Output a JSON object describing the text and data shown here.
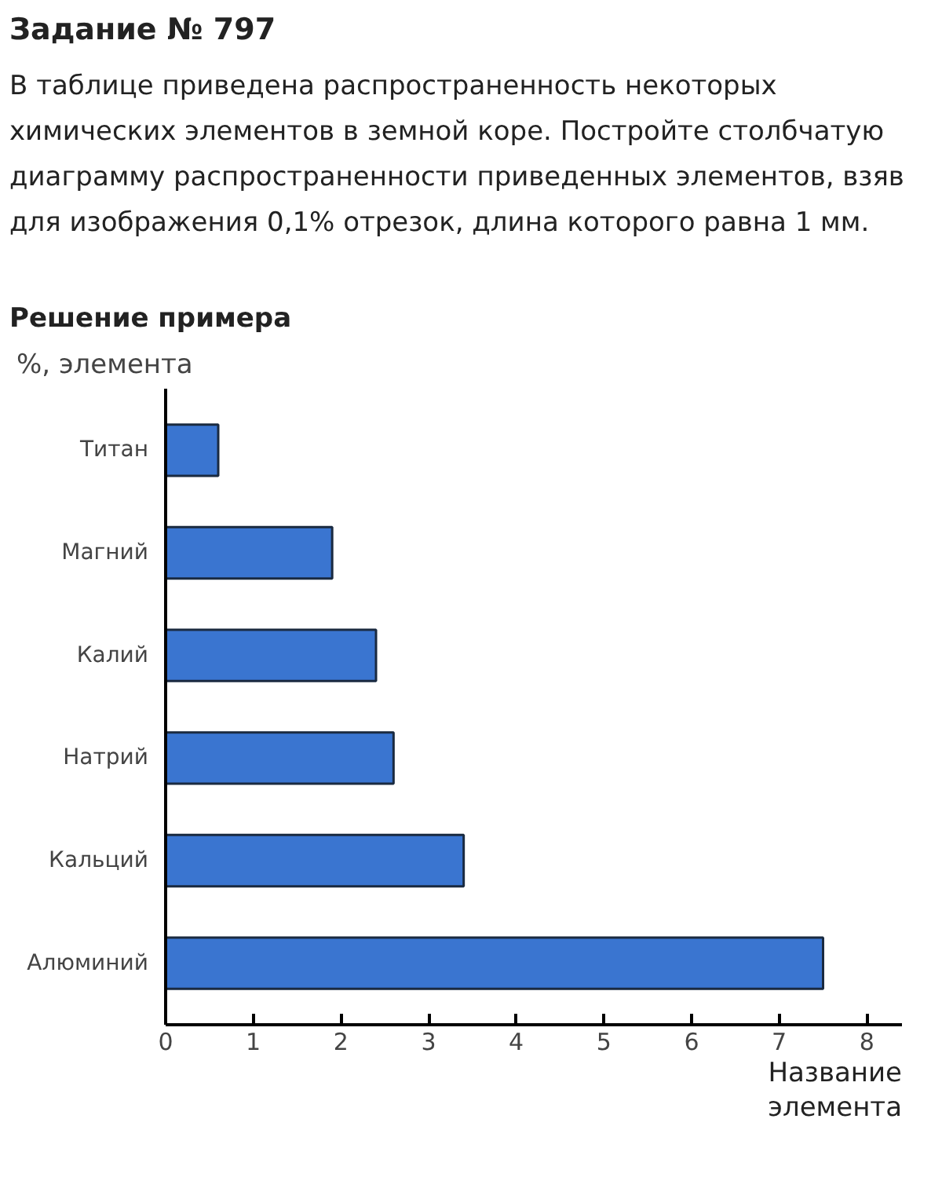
{
  "chart_data": {
    "type": "bar",
    "orientation": "horizontal",
    "title": "Задание № 797",
    "subtitle": "В таблице приведена распространенность некоторых химических элементов в земной коре. Постройте столбчатую диаграмму распространенности приведенных элементов, взяв для изображения 0,1% отрезок, длина которого равна 1 мм.",
    "annotations": [
      "Решение примера"
    ],
    "ylabel": "%, элемента",
    "xlabel": "Название элемента",
    "categories": [
      "Титан",
      "Магний",
      "Калий",
      "Натрий",
      "Кальций",
      "Алюминий"
    ],
    "values": [
      0.6,
      1.9,
      2.4,
      2.6,
      3.4,
      7.5
    ],
    "color": "#3a75d0",
    "xlim": [
      0,
      8.4
    ],
    "xticks": [
      0,
      1,
      2,
      3,
      4,
      5,
      6,
      7,
      8
    ],
    "grid": false
  }
}
